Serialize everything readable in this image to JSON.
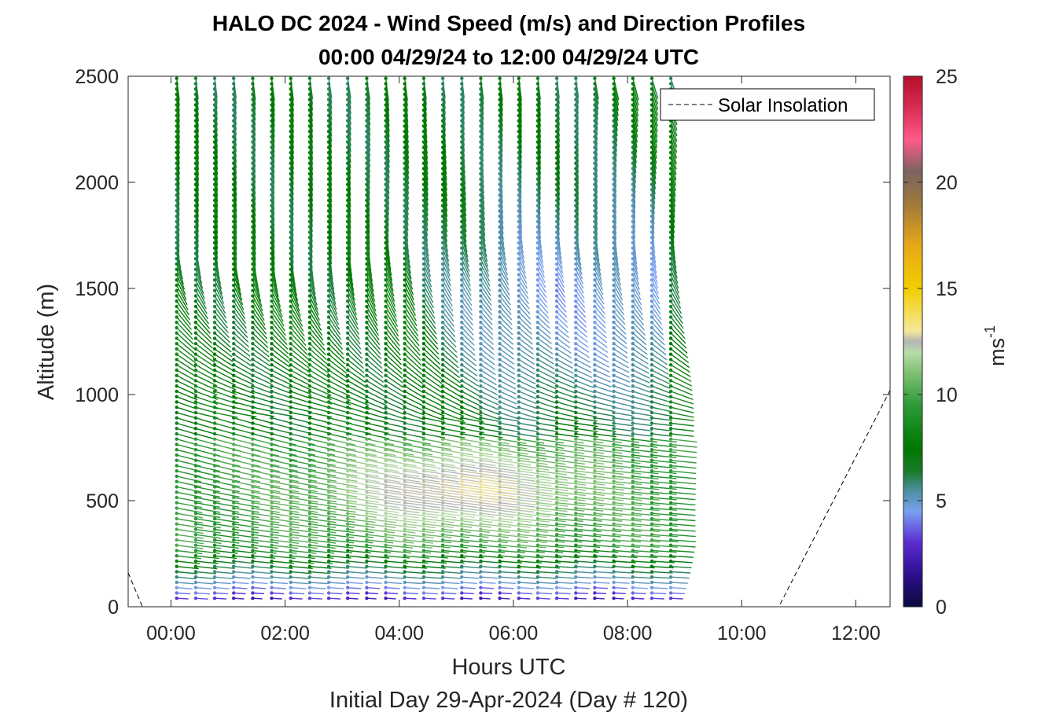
{
  "chart_data": {
    "type": "quiver",
    "title": "HALO DC 2024 - Wind Speed (m/s) and Direction Profiles",
    "subtitle": "00:00 04/29/24 to 12:00 04/29/24  UTC",
    "xlabel": "Hours UTC",
    "xlabel2": "Initial Day 29-Apr-2024 (Day # 120)",
    "ylabel": "Altitude (m)",
    "colorbar_label": "ms",
    "colorbar_label_exp": "-1",
    "x_ticks": [
      "00:00",
      "02:00",
      "04:00",
      "06:00",
      "08:00",
      "10:00",
      "12:00"
    ],
    "y_ticks": [
      "0",
      "500",
      "1000",
      "1500",
      "2000",
      "2500"
    ],
    "colorbar_ticks": [
      "0",
      "5",
      "10",
      "15",
      "20",
      "25"
    ],
    "xlim_hours": [
      -0.75,
      12.6
    ],
    "ylim": [
      0,
      2500
    ],
    "clim": [
      0,
      25
    ],
    "legend": {
      "label": "Solar Insolation",
      "position": "top-right"
    },
    "profiles": {
      "time_start_hours": 0.1,
      "time_step_hours": 0.333,
      "count": 27,
      "altitude_start_m": 40,
      "altitude_step_m": 25,
      "altitude_max_m": 2500
    },
    "solar_insolation": {
      "x_hours": [
        -0.75,
        -0.5,
        10.65,
        12.6
      ],
      "y_m": [
        160,
        0,
        0,
        1020
      ]
    },
    "colormap": [
      "#0a0a3c",
      "#2c0f8c",
      "#5a2ad0",
      "#7aa0f0",
      "#4a8f9e",
      "#007800",
      "#2e9a3a",
      "#7fbf72",
      "#b9dcab",
      "#b4b4b4",
      "#f6e79a",
      "#f2ce00",
      "#e8a817",
      "#a0783c",
      "#7a6460",
      "#ff5a88",
      "#d92d55",
      "#b4102a"
    ]
  }
}
